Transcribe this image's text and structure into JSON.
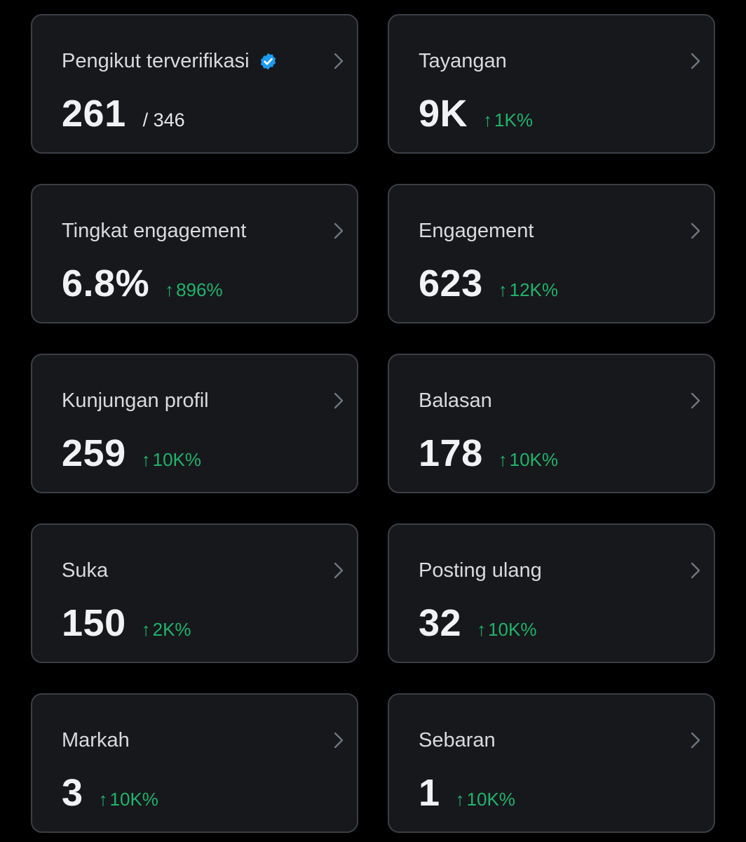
{
  "colors": {
    "background": "#000000",
    "card": "#16181c",
    "card_border": "#3b3f44",
    "title": "#d8dadd",
    "value": "#f1f2f3",
    "positive": "#21b26b",
    "verified": "#1d9bf0"
  },
  "icons": {
    "verified": "verified-badge-icon",
    "chevron": "chevron-right-icon",
    "arrow": "arrow-up-icon",
    "arrow_glyph": "↑"
  },
  "cards": [
    {
      "title": "Pengikut terverifikasi",
      "value": "261",
      "sub": "/ 346"
    },
    {
      "title": "Tayangan",
      "value": "9K",
      "change": "1K%"
    },
    {
      "title": "Tingkat engagement",
      "value": "6.8%",
      "change": "896%"
    },
    {
      "title": "Engagement",
      "value": "623",
      "change": "12K%"
    },
    {
      "title": "Kunjungan profil",
      "value": "259",
      "change": "10K%"
    },
    {
      "title": "Balasan",
      "value": "178",
      "change": "10K%"
    },
    {
      "title": "Suka",
      "value": "150",
      "change": "2K%"
    },
    {
      "title": "Posting ulang",
      "value": "32",
      "change": "10K%"
    },
    {
      "title": "Markah",
      "value": "3",
      "change": "10K%"
    },
    {
      "title": "Sebaran",
      "value": "1",
      "change": "10K%"
    }
  ]
}
